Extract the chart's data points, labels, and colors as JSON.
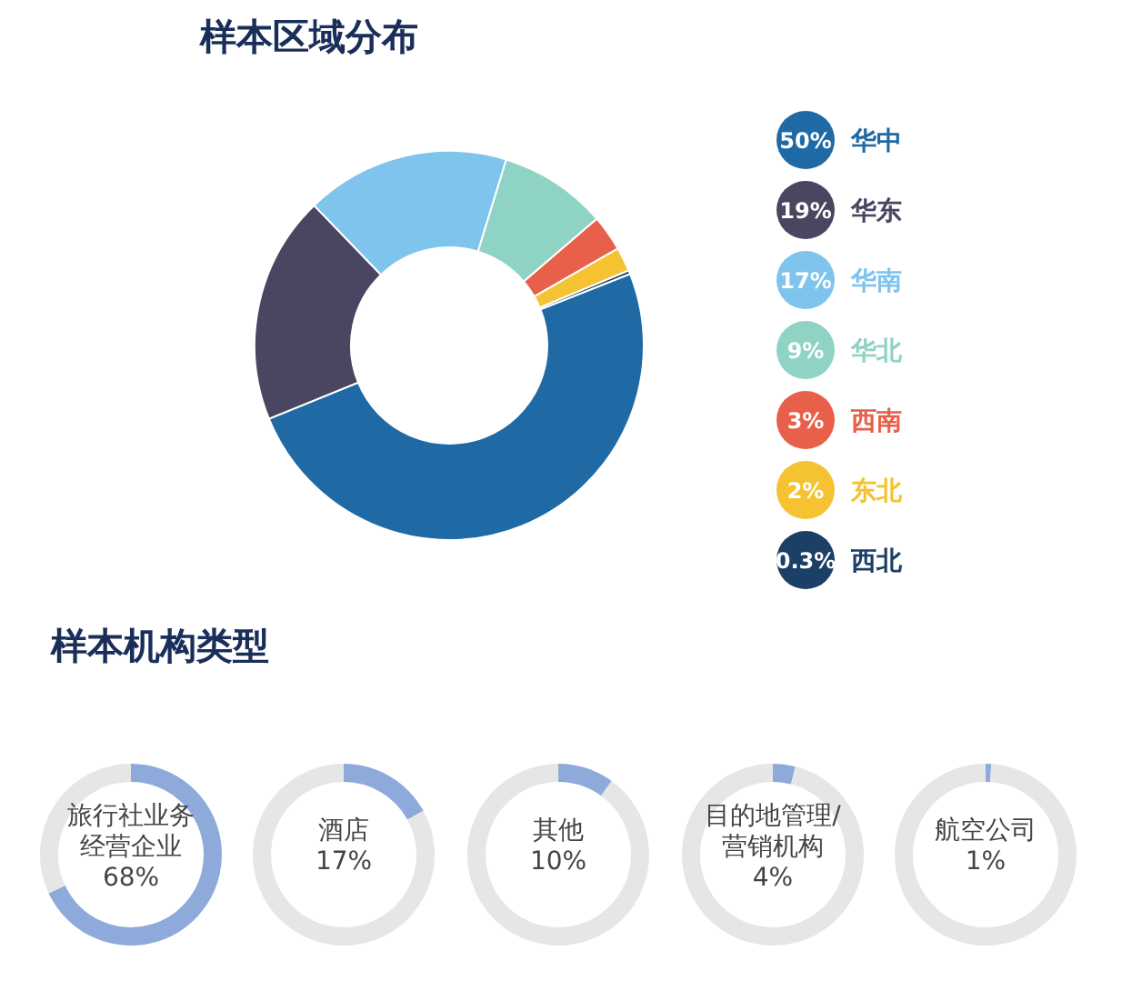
{
  "chart_data": [
    {
      "type": "donut",
      "title": "样本区域分布",
      "categories": [
        "华中",
        "华东",
        "华南",
        "华北",
        "西南",
        "东北",
        "西北"
      ],
      "values": [
        50,
        19,
        17,
        9,
        3,
        2,
        0.3
      ],
      "value_labels": [
        "50%",
        "19%",
        "17%",
        "9%",
        "3%",
        "2%",
        "0.3%"
      ],
      "colors": [
        "#1f6aa5",
        "#4a4560",
        "#7ec4ec",
        "#8fd3c4",
        "#e8604a",
        "#f5c231",
        "#1c3f66"
      ],
      "legend": "right"
    },
    {
      "type": "donut",
      "title": "样本机构类型",
      "categories": [
        "旅行社业务经营企业",
        null
      ],
      "values": [
        68,
        32
      ],
      "value_labels": [
        "68%",
        null
      ],
      "colors": [
        "#8eaadb",
        "#e6e6e6"
      ]
    },
    {
      "type": "donut",
      "categories": [
        "酒店",
        null
      ],
      "values": [
        17,
        83
      ],
      "value_labels": [
        "17%",
        null
      ],
      "colors": [
        "#8eaadb",
        "#e6e6e6"
      ]
    },
    {
      "type": "donut",
      "categories": [
        "其他",
        null
      ],
      "values": [
        10,
        90
      ],
      "value_labels": [
        "10%",
        null
      ],
      "colors": [
        "#8eaadb",
        "#e6e6e6"
      ]
    },
    {
      "type": "donut",
      "categories": [
        "目的地管理/营销机构",
        null
      ],
      "values": [
        4,
        96
      ],
      "value_labels": [
        "4%",
        null
      ],
      "colors": [
        "#8eaadb",
        "#e6e6e6"
      ]
    },
    {
      "type": "donut",
      "categories": [
        "航空公司",
        null
      ],
      "values": [
        1,
        99
      ],
      "value_labels": [
        "1%",
        null
      ],
      "colors": [
        "#8eaadb",
        "#e6e6e6"
      ]
    }
  ]
}
